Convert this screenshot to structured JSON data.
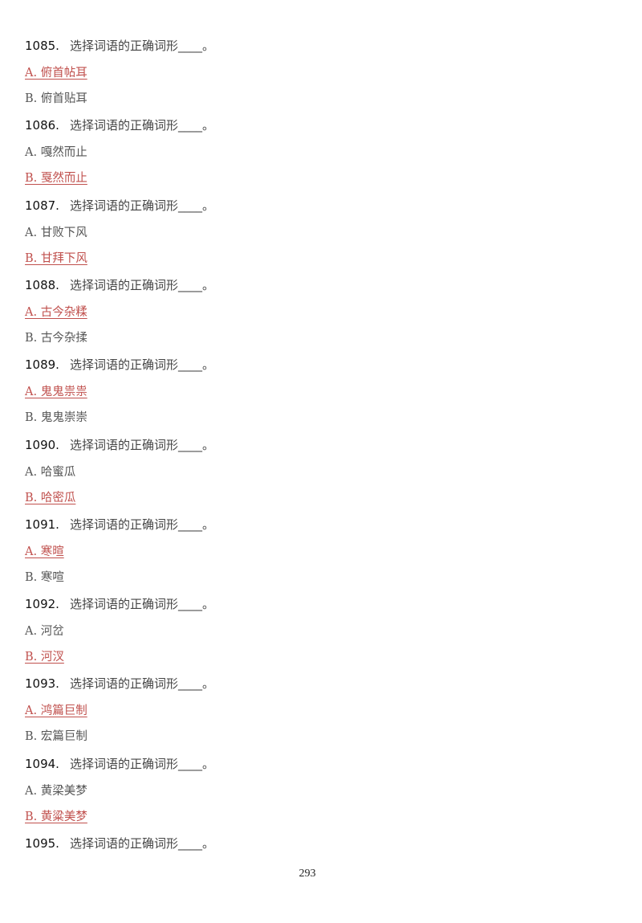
{
  "colors": {
    "correct": "#c0504d",
    "option": "#555555",
    "question": "#111111"
  },
  "questions": [
    {
      "number": "1085.",
      "text": "选择词语的正确词形____。",
      "a": "A. 俯首帖耳",
      "b": "B. 俯首贴耳",
      "correct": "a"
    },
    {
      "number": "1086.",
      "text": "选择词语的正确词形____。",
      "a": "A. 嘎然而止",
      "b": "B. 戛然而止",
      "correct": "b"
    },
    {
      "number": "1087.",
      "text": "选择词语的正确词形____。",
      "a": "A. 甘败下风",
      "b": "B. 甘拜下风",
      "correct": "b"
    },
    {
      "number": "1088.",
      "text": "选择词语的正确词形____。",
      "a": "A. 古今杂糅",
      "b": "B. 古今杂揉",
      "correct": "a"
    },
    {
      "number": "1089.",
      "text": "选择词语的正确词形____。",
      "a": "A. 鬼鬼祟祟",
      "b": "B. 鬼鬼崇崇",
      "correct": "a"
    },
    {
      "number": "1090.",
      "text": "选择词语的正确词形____。",
      "a": "A. 哈蜜瓜",
      "b": "B. 哈密瓜",
      "correct": "b"
    },
    {
      "number": "1091.",
      "text": "选择词语的正确词形____。",
      "a": "A. 寒暄",
      "b": "B. 寒喧",
      "correct": "a"
    },
    {
      "number": "1092.",
      "text": "选择词语的正确词形____。",
      "a": "A. 河岔",
      "b": "B. 河汊",
      "correct": "b"
    },
    {
      "number": "1093.",
      "text": "选择词语的正确词形____。",
      "a": "A. 鸿篇巨制",
      "b": "B. 宏篇巨制",
      "correct": "a"
    },
    {
      "number": "1094.",
      "text": "选择词语的正确词形____。",
      "a": "A. 黄梁美梦",
      "b": "B. 黄粱美梦",
      "correct": "b"
    },
    {
      "number": "1095.",
      "text": "选择词语的正确词形____。"
    }
  ],
  "page_number": "293"
}
